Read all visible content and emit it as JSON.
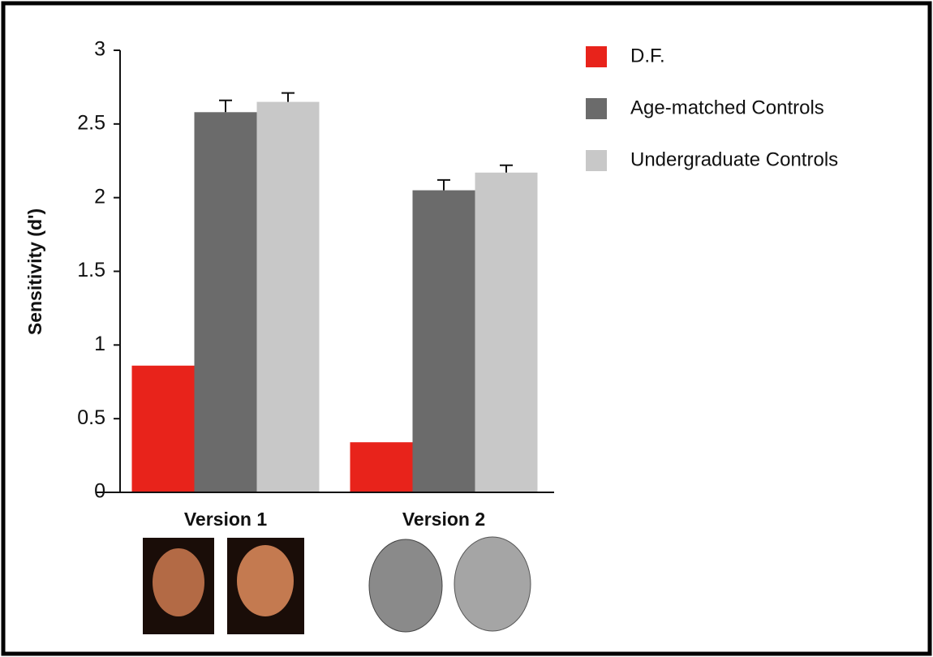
{
  "chart_data": {
    "type": "bar",
    "y_label": "Sensitivity (d')",
    "categories": [
      "Version 1",
      "Version 2"
    ],
    "series": [
      {
        "name": "D.F.",
        "color": "#e8231b",
        "values": [
          0.86,
          0.34
        ],
        "errors": [
          null,
          null
        ]
      },
      {
        "name": "Age-matched Controls",
        "color": "#6b6b6b",
        "values": [
          2.58,
          2.05
        ],
        "errors": [
          0.08,
          0.07
        ]
      },
      {
        "name": "Undergraduate Controls",
        "color": "#c8c8c8",
        "values": [
          2.65,
          2.17
        ],
        "errors": [
          0.06,
          0.05
        ]
      }
    ],
    "ylim": [
      0,
      3
    ],
    "yticks": [
      0,
      0.5,
      1,
      1.5,
      2,
      2.5,
      3
    ],
    "legend": "top-right"
  }
}
